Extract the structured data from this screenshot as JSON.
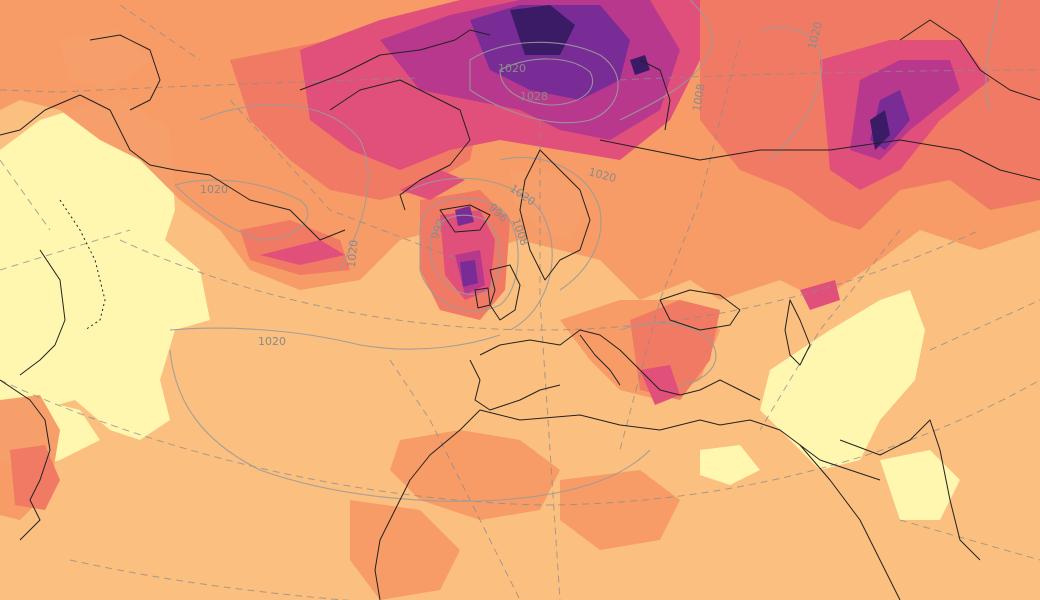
{
  "map": {
    "colors": {
      "background": "#fbbf7f",
      "light": "#fff6b0",
      "orange": "#f79a66",
      "salmon": "#f07a63",
      "pink": "#e0507a",
      "magenta": "#b8388e",
      "purple": "#7a2c96",
      "dark": "#3b1a66",
      "isobar": "#9b9b9b",
      "coast": "#222222",
      "grid": "#8c8c8c"
    },
    "isobar_labels": [
      "1020",
      "1020",
      "1020",
      "1020",
      "1008",
      "1020",
      "996",
      "1008",
      "992",
      "1020",
      "1028",
      "1020"
    ]
  }
}
